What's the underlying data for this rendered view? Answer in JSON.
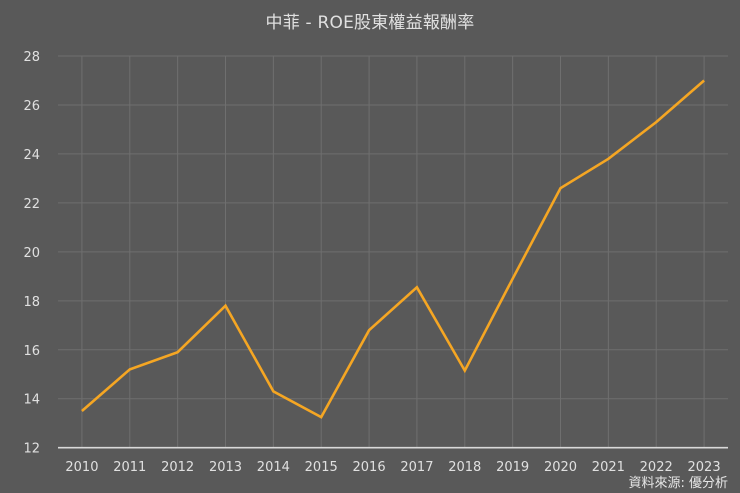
{
  "chart_data": {
    "type": "line",
    "title": "中菲 - ROE股東權益報酬率",
    "xlabel": "",
    "ylabel": "",
    "categories": [
      "2010",
      "2011",
      "2012",
      "2013",
      "2014",
      "2015",
      "2016",
      "2017",
      "2018",
      "2019",
      "2020",
      "2021",
      "2022",
      "2023"
    ],
    "series": [
      {
        "name": "ROE股東權益報酬率",
        "color": "#f5a623",
        "values": [
          13.5,
          15.2,
          15.9,
          17.8,
          14.3,
          13.25,
          16.8,
          18.55,
          15.15,
          18.9,
          22.6,
          23.8,
          25.3,
          27.0
        ]
      }
    ],
    "ylim": [
      12,
      28
    ],
    "yticks": [
      12,
      14,
      16,
      18,
      20,
      22,
      24,
      26,
      28
    ],
    "grid": true,
    "legend": "none",
    "annotations": [
      "資料來源: 優分析"
    ]
  },
  "title": "中菲 - ROE股東權益報酬率",
  "source_note": "資料來源: 優分析",
  "colors": {
    "background": "#595959",
    "grid": "#6f6f6f",
    "axis": "#d9d9d9",
    "line": "#f5a623",
    "text": "#e0e0e0"
  }
}
